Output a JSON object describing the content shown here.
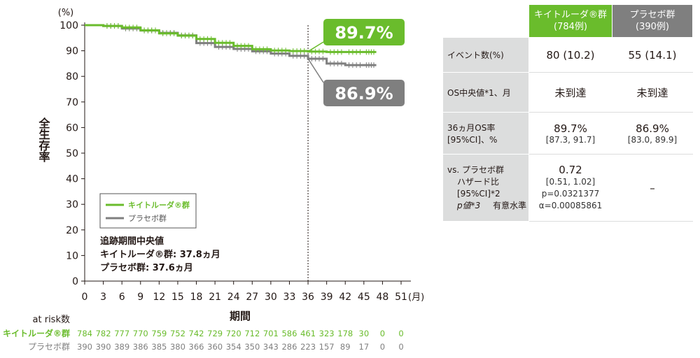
{
  "chart_data": {
    "type": "line",
    "y_unit": "(%)",
    "ylabel": "全生存率",
    "xlabel": "期間",
    "x_unit": "(月)",
    "ylim": [
      0,
      100
    ],
    "xlim": [
      0,
      51
    ],
    "y_ticks": [
      "0",
      "10",
      "20",
      "30",
      "40",
      "50",
      "60",
      "70",
      "80",
      "90",
      "100"
    ],
    "x_ticks": [
      "0",
      "3",
      "6",
      "9",
      "12",
      "15",
      "18",
      "21",
      "24",
      "27",
      "30",
      "33",
      "36",
      "39",
      "42",
      "45",
      "48",
      "51"
    ],
    "reference_line_x": 36,
    "series": [
      {
        "name": "キイトルーダ®群",
        "color": "#6abc2c",
        "x": [
          0,
          3,
          6,
          9,
          12,
          15,
          18,
          21,
          24,
          27,
          30,
          33,
          36,
          39,
          42,
          45,
          47
        ],
        "values": [
          100,
          99.7,
          99.1,
          98.0,
          96.8,
          95.9,
          94.6,
          93.1,
          91.9,
          90.6,
          90.1,
          89.9,
          89.7,
          89.5,
          89.5,
          89.5,
          89.5
        ]
      },
      {
        "name": "プラセボ群",
        "color": "#7f7f7f",
        "x": [
          0,
          3,
          6,
          9,
          12,
          15,
          18,
          21,
          24,
          27,
          30,
          33,
          36,
          39,
          42,
          45,
          47
        ],
        "values": [
          100,
          99.7,
          98.7,
          97.9,
          97.0,
          96.0,
          93.0,
          91.5,
          90.7,
          89.8,
          88.9,
          88.0,
          86.9,
          85.0,
          84.4,
          84.4,
          84.4
        ]
      }
    ],
    "callouts": {
      "keytruda": "89.7%",
      "placebo": "86.9%"
    },
    "legend": {
      "keytruda": "キイトルーダ®群",
      "placebo": "プラセボ群"
    },
    "median_follow_up": {
      "title": "追跡期間中央値",
      "keytruda": "キイトルーダ®群: 37.8ヵ月",
      "placebo": "プラセボ群: 37.6ヵ月"
    },
    "at_risk": {
      "title": "at risk数",
      "keytruda_label": "キイトルーダ®群",
      "placebo_label": "プラセボ群",
      "keytruda": [
        "784",
        "782",
        "777",
        "770",
        "759",
        "752",
        "742",
        "729",
        "720",
        "712",
        "701",
        "586",
        "461",
        "323",
        "178",
        "30",
        "0",
        "0"
      ],
      "placebo": [
        "390",
        "390",
        "389",
        "386",
        "385",
        "380",
        "366",
        "360",
        "354",
        "350",
        "343",
        "286",
        "223",
        "157",
        "89",
        "17",
        "0",
        "0"
      ]
    }
  },
  "table": {
    "header_keytruda": "キイトルーダ®群",
    "header_keytruda_n": "(784例)",
    "header_placebo": "プラセボ群",
    "header_placebo_n": "(390例)",
    "events_label": "イベント数(%)",
    "events_keytruda": "80 (10.2)",
    "events_placebo": "55 (14.1)",
    "median_label": "OS中央値*1、月",
    "median_keytruda": "未到達",
    "median_placebo": "未到達",
    "rate_label_1": "36ヵ月OS率",
    "rate_label_2": "[95%CI]、%",
    "rate_keytruda": "89.7%",
    "rate_keytruda_ci": "[87.3, 91.7]",
    "rate_placebo": "86.9%",
    "rate_placebo_ci": "[83.0, 89.9]",
    "vs_label_1": "vs. プラセボ群",
    "vs_label_2": "ハザード比",
    "vs_label_3": "[95%CI]*2",
    "vs_label_4": "p値*3",
    "vs_label_5": "有意水準",
    "hr_value": "0.72",
    "hr_ci": "[0.51, 1.02]",
    "p_value": "p=0.0321377",
    "alpha": "α=0.00085861",
    "hr_placebo": "–"
  }
}
